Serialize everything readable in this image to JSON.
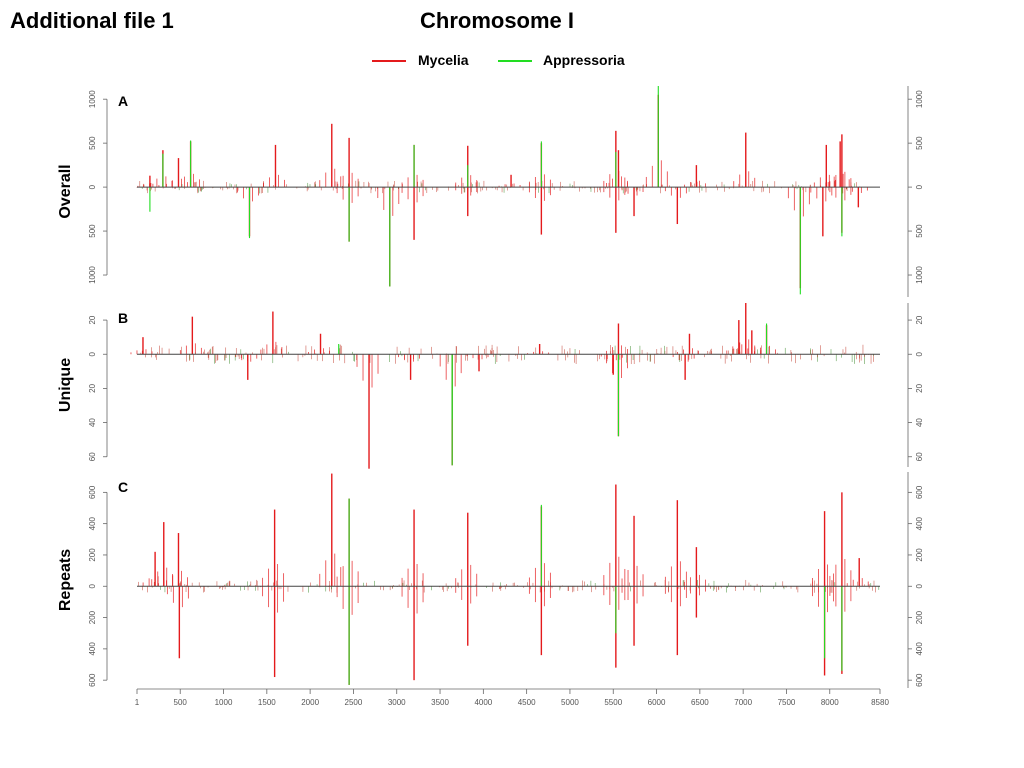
{
  "header": {
    "file_label": "Additional file 1",
    "chromosome": "Chromosome I"
  },
  "legend": [
    {
      "name": "Mycelia",
      "color": "#e41a1c"
    },
    {
      "name": "Appressoria",
      "color": "#22dd22"
    }
  ],
  "chart_data": {
    "type": "bar",
    "x_axis": {
      "range": [
        1,
        8580
      ],
      "ticks": [
        1,
        500,
        1000,
        1500,
        2000,
        2500,
        3000,
        3500,
        4000,
        4500,
        5000,
        5500,
        6000,
        6500,
        7000,
        7500,
        8000,
        8580
      ]
    },
    "panels": [
      {
        "letter": "A",
        "ylabel": "Overall",
        "ylim": [
          -1250,
          1150
        ],
        "y_ticks": [
          1000,
          500,
          0,
          -500,
          -1000
        ],
        "y_tick_labels": [
          "1000",
          "500",
          "0",
          "500",
          "1000"
        ]
      },
      {
        "letter": "B",
        "ylabel": "Unique",
        "ylim": [
          -66,
          30
        ],
        "y_ticks": [
          20,
          0,
          -20,
          -40,
          -60
        ],
        "y_tick_labels": [
          "20",
          "0",
          "20",
          "40",
          "60"
        ]
      },
      {
        "letter": "C",
        "ylabel": "Repeats",
        "ylim": [
          -650,
          730
        ],
        "y_ticks": [
          600,
          400,
          200,
          0,
          -200,
          -400,
          -600
        ],
        "y_tick_labels": [
          "600",
          "400",
          "200",
          "0",
          "200",
          "400",
          "600"
        ]
      }
    ],
    "series": [
      {
        "name": "Mycelia",
        "A": [
          [
            150,
            130
          ],
          [
            300,
            420
          ],
          [
            480,
            330
          ],
          [
            620,
            520
          ],
          [
            1300,
            -560
          ],
          [
            1600,
            480
          ],
          [
            2250,
            720
          ],
          [
            2450,
            560
          ],
          [
            2450,
            -620
          ],
          [
            2920,
            -1130
          ],
          [
            3200,
            480
          ],
          [
            3200,
            -600
          ],
          [
            3820,
            470
          ],
          [
            3820,
            -330
          ],
          [
            4320,
            140
          ],
          [
            4670,
            500
          ],
          [
            4670,
            -540
          ],
          [
            5530,
            640
          ],
          [
            5530,
            -520
          ],
          [
            5560,
            420
          ],
          [
            5740,
            -330
          ],
          [
            6020,
            1050
          ],
          [
            6240,
            -420
          ],
          [
            6460,
            250
          ],
          [
            7030,
            620
          ],
          [
            7660,
            -1150
          ],
          [
            7920,
            -560
          ],
          [
            7960,
            480
          ],
          [
            8120,
            520
          ],
          [
            8140,
            600
          ],
          [
            8140,
            -520
          ],
          [
            8330,
            -230
          ]
        ],
        "B": [
          [
            70,
            10
          ],
          [
            640,
            22
          ],
          [
            1280,
            -15
          ],
          [
            1570,
            25
          ],
          [
            2120,
            12
          ],
          [
            2680,
            -67
          ],
          [
            3160,
            -15
          ],
          [
            3640,
            -65
          ],
          [
            3950,
            -10
          ],
          [
            4650,
            6
          ],
          [
            5500,
            -12
          ],
          [
            5560,
            18
          ],
          [
            5560,
            -48
          ],
          [
            6330,
            -15
          ],
          [
            6380,
            12
          ],
          [
            6950,
            20
          ],
          [
            7030,
            30
          ],
          [
            7100,
            14
          ],
          [
            7270,
            17
          ]
        ],
        "C": [
          [
            210,
            220
          ],
          [
            310,
            410
          ],
          [
            480,
            340
          ],
          [
            490,
            -460
          ],
          [
            1590,
            490
          ],
          [
            1590,
            -580
          ],
          [
            2250,
            720
          ],
          [
            2450,
            560
          ],
          [
            2450,
            -630
          ],
          [
            3200,
            490
          ],
          [
            3200,
            -600
          ],
          [
            3820,
            470
          ],
          [
            3820,
            -380
          ],
          [
            4670,
            510
          ],
          [
            4670,
            -440
          ],
          [
            5530,
            650
          ],
          [
            5530,
            -520
          ],
          [
            5740,
            450
          ],
          [
            5740,
            -380
          ],
          [
            6240,
            550
          ],
          [
            6240,
            -440
          ],
          [
            6460,
            250
          ],
          [
            6460,
            -200
          ],
          [
            7940,
            480
          ],
          [
            7940,
            -570
          ],
          [
            8140,
            600
          ],
          [
            8140,
            -560
          ],
          [
            8340,
            180
          ]
        ]
      },
      {
        "name": "Appressoria",
        "A": [
          [
            150,
            -280
          ],
          [
            300,
            380
          ],
          [
            620,
            530
          ],
          [
            1300,
            -580
          ],
          [
            2450,
            -620
          ],
          [
            2920,
            -1130
          ],
          [
            3200,
            480
          ],
          [
            3820,
            250
          ],
          [
            4670,
            520
          ],
          [
            5530,
            400
          ],
          [
            6020,
            1150
          ],
          [
            7660,
            -1220
          ],
          [
            8140,
            -560
          ]
        ],
        "B": [
          [
            3640,
            -65
          ],
          [
            3640,
            -38
          ],
          [
            5560,
            -48
          ],
          [
            7270,
            18
          ],
          [
            2330,
            6
          ]
        ],
        "C": [
          [
            2450,
            560
          ],
          [
            2450,
            -630
          ],
          [
            4670,
            520
          ],
          [
            5530,
            -300
          ],
          [
            7940,
            -460
          ],
          [
            8140,
            -540
          ]
        ]
      }
    ]
  }
}
